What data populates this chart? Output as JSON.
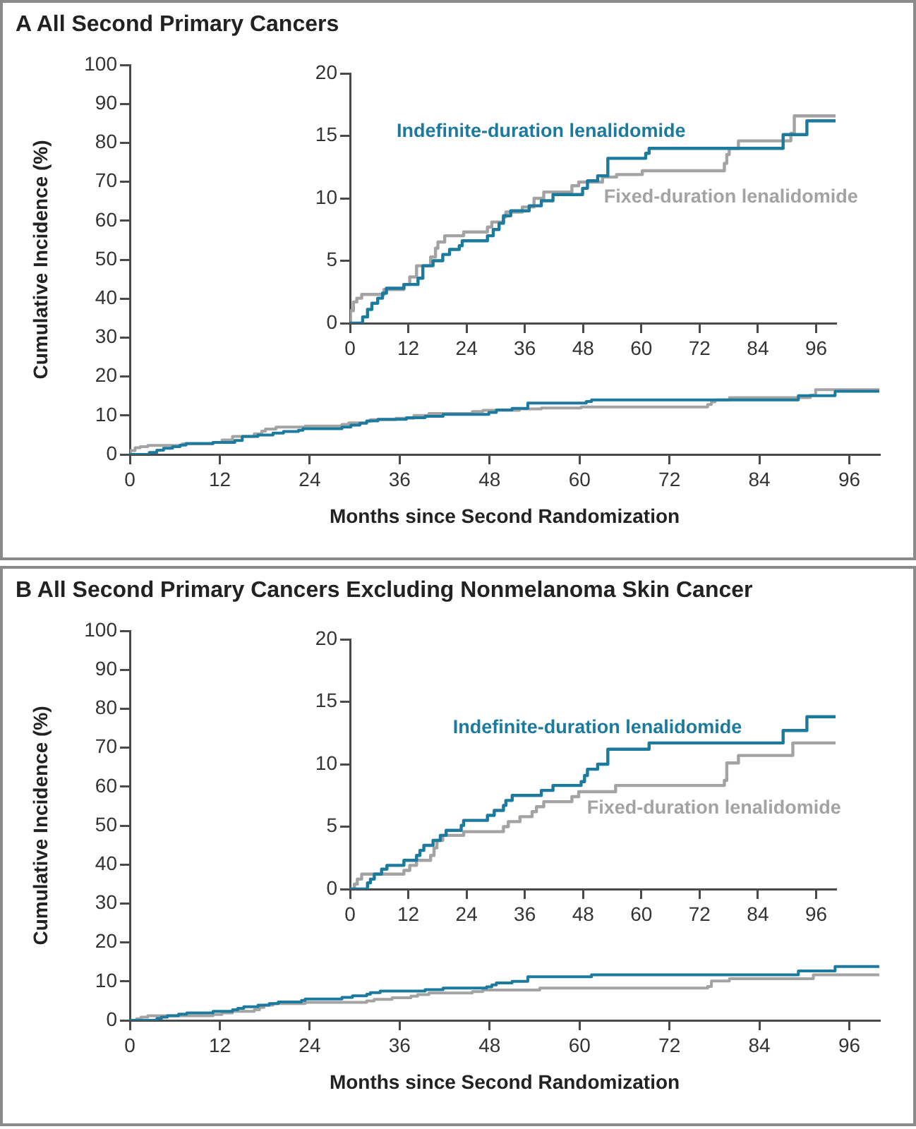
{
  "chart_data": [
    {
      "type": "step",
      "title": "A All Second Primary Cancers",
      "xlabel": "Months since Second Randomization",
      "ylabel": "Cumulative Incidence (%)",
      "xlim": [
        0,
        100
      ],
      "xticks": [
        0,
        12,
        24,
        36,
        48,
        60,
        72,
        84,
        96
      ],
      "ylim": [
        0,
        100
      ],
      "yticks": [
        0,
        10,
        20,
        30,
        40,
        50,
        60,
        70,
        80,
        90,
        100
      ],
      "series": [
        {
          "color": "#1b7a9e",
          "x": [
            0,
            2.6,
            3.6,
            4.5,
            5.7,
            6.7,
            7.5,
            11.1,
            14,
            15,
            17.1,
            19.1,
            20.5,
            22.5,
            23.1,
            28.3,
            29.5,
            30.7,
            31.6,
            33.1,
            36.9,
            39.4,
            41.8,
            47.9,
            48.9,
            51,
            53.1,
            60.9,
            61.6,
            89.2,
            94.1,
            100
          ],
          "values": [
            0,
            0.5,
            1.1,
            1.6,
            2.0,
            2.4,
            2.8,
            3.1,
            3.6,
            4.6,
            5.0,
            5.5,
            5.9,
            6.2,
            6.6,
            7.0,
            7.5,
            8.0,
            8.6,
            9.0,
            9.4,
            9.8,
            10.3,
            10.8,
            11.4,
            11.8,
            13.2,
            13.6,
            14.0,
            15.1,
            16.2,
            16.2
          ]
        },
        {
          "color": "#a3a3a3",
          "x": [
            0,
            0.1,
            0.7,
            1.4,
            2.4,
            7,
            11.1,
            12.3,
            13.7,
            16.6,
            17.6,
            18.1,
            19.5,
            23.4,
            28.3,
            29.2,
            31.6,
            32.1,
            35.5,
            37.9,
            39.9,
            45.7,
            47.1,
            52,
            54.9,
            60.2,
            77.1,
            77.6,
            78.1,
            80,
            90.8,
            91.5,
            100
          ],
          "values": [
            0,
            1.0,
            1.7,
            2.0,
            2.3,
            2.7,
            3.1,
            3.7,
            4.6,
            5.3,
            6.0,
            6.5,
            7.0,
            7.3,
            7.7,
            8.1,
            8.5,
            8.9,
            9.3,
            10.0,
            10.5,
            11.0,
            11.3,
            11.7,
            11.9,
            12.2,
            12.8,
            13.5,
            14.0,
            14.6,
            15.2,
            16.6,
            16.6
          ]
        }
      ]
    },
    {
      "type": "step",
      "xlim": [
        0,
        100
      ],
      "xticks": [
        0,
        12,
        24,
        36,
        48,
        60,
        72,
        84,
        96
      ],
      "ylim": [
        0,
        20
      ],
      "yticks": [
        0,
        5,
        10,
        15,
        20
      ],
      "series": [
        {
          "name": "Indefinite-duration lenalidomide",
          "color": "#1b7a9e",
          "x": [
            0,
            2.6,
            3.6,
            4.5,
            5.7,
            6.7,
            7.5,
            11.1,
            14,
            15,
            17.1,
            19.1,
            20.5,
            22.5,
            23.1,
            28.3,
            29.5,
            30.7,
            31.6,
            33.1,
            36.9,
            39.4,
            41.8,
            47.9,
            48.9,
            51,
            53.1,
            60.9,
            61.6,
            89.2,
            94.1,
            100
          ],
          "values": [
            0,
            0.5,
            1.1,
            1.6,
            2.0,
            2.4,
            2.8,
            3.1,
            3.6,
            4.6,
            5.0,
            5.5,
            5.9,
            6.2,
            6.6,
            7.0,
            7.5,
            8.0,
            8.6,
            9.0,
            9.4,
            9.8,
            10.3,
            10.8,
            11.4,
            11.8,
            13.2,
            13.6,
            14.0,
            15.1,
            16.2,
            16.2
          ]
        },
        {
          "name": "Fixed-duration lenalidomide",
          "color": "#a3a3a3",
          "x": [
            0,
            0.1,
            0.7,
            1.4,
            2.4,
            7,
            11.1,
            12.3,
            13.7,
            16.6,
            17.6,
            18.1,
            19.5,
            23.4,
            28.3,
            29.2,
            31.6,
            32.1,
            35.5,
            37.9,
            39.9,
            45.7,
            47.1,
            52,
            54.9,
            60.2,
            77.1,
            77.6,
            78.1,
            80,
            90.8,
            91.5,
            100
          ],
          "values": [
            0,
            1.0,
            1.7,
            2.0,
            2.3,
            2.7,
            3.1,
            3.7,
            4.6,
            5.3,
            6.0,
            6.5,
            7.0,
            7.3,
            7.7,
            8.1,
            8.5,
            8.9,
            9.3,
            10.0,
            10.5,
            11.0,
            11.3,
            11.7,
            11.9,
            12.2,
            12.8,
            13.5,
            14.0,
            14.6,
            15.2,
            16.6,
            16.6
          ]
        }
      ]
    },
    {
      "type": "step",
      "title": "B All Second Primary Cancers Excluding Nonmelanoma Skin Cancer",
      "xlabel": "Months since Second Randomization",
      "ylabel": "Cumulative Incidence (%)",
      "xlim": [
        0,
        100
      ],
      "xticks": [
        0,
        12,
        24,
        36,
        48,
        60,
        72,
        84,
        96
      ],
      "ylim": [
        0,
        100
      ],
      "yticks": [
        0,
        10,
        20,
        30,
        40,
        50,
        60,
        70,
        80,
        90,
        100
      ],
      "series": [
        {
          "color": "#1b7a9e",
          "x": [
            0,
            3.6,
            4.2,
            5,
            6.5,
            7.6,
            11.1,
            13.7,
            14.4,
            15.2,
            17.1,
            18.6,
            19.8,
            22.9,
            23.4,
            28.3,
            29.7,
            31.6,
            32.1,
            33.4,
            39.4,
            41.8,
            47.6,
            48.3,
            48.9,
            51,
            53.1,
            61.6,
            89.2,
            94.1,
            100
          ],
          "values": [
            0,
            0.5,
            0.8,
            1.2,
            1.6,
            1.9,
            2.3,
            2.7,
            3.1,
            3.5,
            3.9,
            4.3,
            4.7,
            5.1,
            5.5,
            5.9,
            6.3,
            6.7,
            7.1,
            7.5,
            7.9,
            8.3,
            8.6,
            9.1,
            9.6,
            10.0,
            11.2,
            11.7,
            12.7,
            13.8,
            13.8
          ]
        },
        {
          "color": "#a3a3a3",
          "x": [
            0,
            0.9,
            1.5,
            2.4,
            11.1,
            12.3,
            13.7,
            16.6,
            17.3,
            17.9,
            19.1,
            23.4,
            31.6,
            32.6,
            35,
            37.5,
            38.4,
            39.9,
            45.7,
            47.1,
            54.7,
            77.1,
            77.6,
            80,
            91.2,
            100
          ],
          "values": [
            0,
            0.4,
            0.8,
            1.2,
            1.5,
            1.9,
            2.3,
            2.7,
            3.3,
            3.9,
            4.3,
            4.6,
            5.0,
            5.4,
            5.8,
            6.2,
            6.6,
            7.0,
            7.4,
            7.8,
            8.3,
            8.7,
            10.1,
            10.7,
            11.7,
            11.7
          ]
        }
      ]
    },
    {
      "type": "step",
      "xlim": [
        0,
        100
      ],
      "xticks": [
        0,
        12,
        24,
        36,
        48,
        60,
        72,
        84,
        96
      ],
      "ylim": [
        0,
        20
      ],
      "yticks": [
        0,
        5,
        10,
        15,
        20
      ],
      "series": [
        {
          "name": "Indefinite-duration lenalidomide",
          "color": "#1b7a9e",
          "x": [
            0,
            3.6,
            4.2,
            5,
            6.5,
            7.6,
            11.1,
            13.7,
            14.4,
            15.2,
            17.1,
            18.6,
            19.8,
            22.9,
            23.4,
            28.3,
            29.7,
            31.6,
            32.1,
            33.4,
            39.4,
            41.8,
            47.6,
            48.3,
            48.9,
            51,
            53.1,
            61.6,
            89.2,
            94.1,
            100
          ],
          "values": [
            0,
            0.5,
            0.8,
            1.2,
            1.6,
            1.9,
            2.3,
            2.7,
            3.1,
            3.5,
            3.9,
            4.3,
            4.7,
            5.1,
            5.5,
            5.9,
            6.3,
            6.7,
            7.1,
            7.5,
            7.9,
            8.3,
            8.6,
            9.1,
            9.6,
            10.0,
            11.2,
            11.7,
            12.7,
            13.8,
            13.8
          ]
        },
        {
          "name": "Fixed-duration lenalidomide",
          "color": "#a3a3a3",
          "x": [
            0,
            0.9,
            1.5,
            2.4,
            11.1,
            12.3,
            13.7,
            16.6,
            17.3,
            17.9,
            19.1,
            23.4,
            31.6,
            32.6,
            35,
            37.5,
            38.4,
            39.9,
            45.7,
            47.1,
            54.7,
            77.1,
            77.6,
            80,
            91.2,
            100
          ],
          "values": [
            0,
            0.4,
            0.8,
            1.2,
            1.5,
            1.9,
            2.3,
            2.7,
            3.3,
            3.9,
            4.3,
            4.6,
            5.0,
            5.4,
            5.8,
            6.2,
            6.6,
            7.0,
            7.4,
            7.8,
            8.3,
            8.7,
            10.1,
            10.7,
            11.7,
            11.7
          ]
        }
      ]
    }
  ]
}
